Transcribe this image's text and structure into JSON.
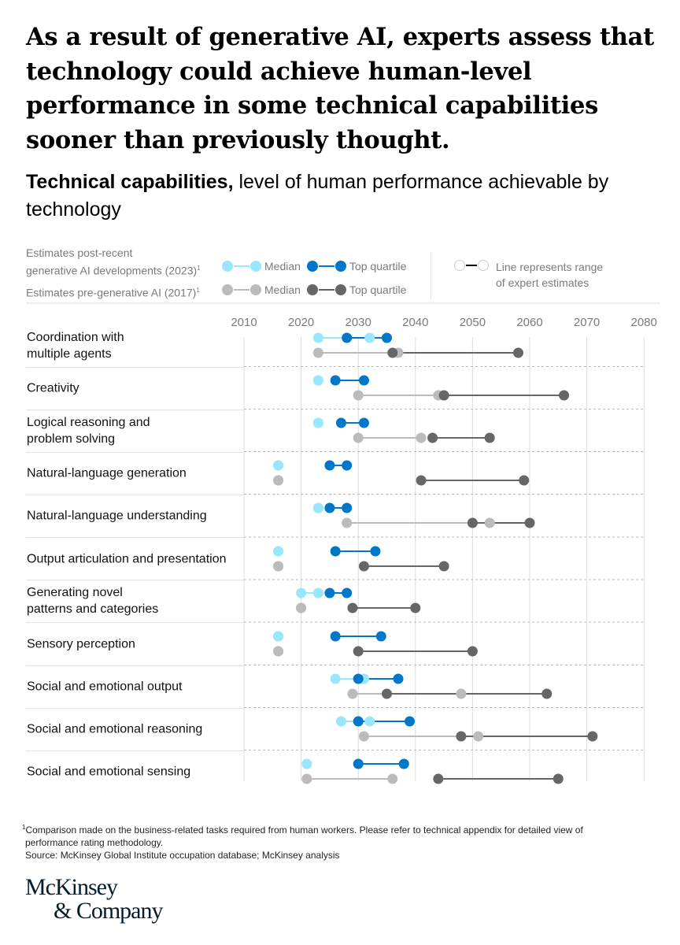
{
  "title": "As a result of generative AI, experts assess that technology could achieve human-level performance in some technical capabilities sooner than previously thought.",
  "subtitle_bold": "Technical capabilities,",
  "subtitle_rest": " level of human performance achievable by technology",
  "legend": {
    "group_2023_line1": "Estimates post-recent",
    "group_2023_line2": "generative AI developments (2023)",
    "group_2017": "Estimates pre-generative AI (2017)",
    "footnote_mark": "1",
    "median": "Median",
    "top_quartile": "Top quartile",
    "range_note_line1": "Line represents range",
    "range_note_line2": "of expert estimates"
  },
  "colors": {
    "median_2023": "#99e6ff",
    "quartile_2023": "#0077c8",
    "median_2017": "#bbbbbb",
    "quartile_2017": "#666666"
  },
  "chart_data": {
    "type": "dumbbell",
    "x_ticks": [
      "2010",
      "2020",
      "2030",
      "2040",
      "2050",
      "2060",
      "2070",
      "2080"
    ],
    "xlim": [
      2010,
      2080
    ],
    "grid": true,
    "legend_position": "top",
    "rows": [
      {
        "label": "Coordination with multiple agents",
        "median_2023": [
          2023,
          2032
        ],
        "quartile_2023": [
          2028,
          2035
        ],
        "median_2017": [
          2023,
          2037
        ],
        "quartile_2017": [
          2036,
          2058
        ]
      },
      {
        "label": "Creativity",
        "median_2023": [
          2023,
          2023
        ],
        "quartile_2023": [
          2026,
          2031
        ],
        "median_2017": [
          2030,
          2044
        ],
        "quartile_2017": [
          2045,
          2066
        ]
      },
      {
        "label": "Logical reasoning and problem solving",
        "median_2023": [
          2023,
          2023
        ],
        "quartile_2023": [
          2027,
          2031
        ],
        "median_2017": [
          2030,
          2041
        ],
        "quartile_2017": [
          2043,
          2053
        ]
      },
      {
        "label": "Natural-language generation",
        "median_2023": [
          2016,
          2016
        ],
        "quartile_2023": [
          2025,
          2028
        ],
        "median_2017": [
          2016,
          2016
        ],
        "quartile_2017": [
          2041,
          2059
        ]
      },
      {
        "label": "Natural-language understanding",
        "median_2023": [
          2023,
          2023
        ],
        "quartile_2023": [
          2025,
          2028
        ],
        "median_2017": [
          2028,
          2053
        ],
        "quartile_2017": [
          2050,
          2060
        ]
      },
      {
        "label": "Output articulation and presentation",
        "median_2023": [
          2016,
          2016
        ],
        "quartile_2023": [
          2026,
          2033
        ],
        "median_2017": [
          2016,
          2016
        ],
        "quartile_2017": [
          2031,
          2045
        ]
      },
      {
        "label": "Generating novel patterns and categories",
        "median_2023": [
          2020,
          2023
        ],
        "quartile_2023": [
          2025,
          2028
        ],
        "median_2017": [
          2020,
          2020
        ],
        "quartile_2017": [
          2029,
          2040
        ]
      },
      {
        "label": "Sensory perception",
        "median_2023": [
          2016,
          2016
        ],
        "quartile_2023": [
          2026,
          2034
        ],
        "median_2017": [
          2016,
          2016
        ],
        "quartile_2017": [
          2030,
          2050
        ]
      },
      {
        "label": "Social and emotional output",
        "median_2023": [
          2026,
          2031
        ],
        "quartile_2023": [
          2030,
          2037
        ],
        "median_2017": [
          2029,
          2048
        ],
        "quartile_2017": [
          2035,
          2063
        ]
      },
      {
        "label": "Social and emotional reasoning",
        "median_2023": [
          2027,
          2032
        ],
        "quartile_2023": [
          2030,
          2039
        ],
        "median_2017": [
          2031,
          2051
        ],
        "quartile_2017": [
          2048,
          2071
        ]
      },
      {
        "label": "Social and emotional sensing",
        "median_2023": [
          2021,
          2021
        ],
        "quartile_2023": [
          2030,
          2038
        ],
        "median_2017": [
          2021,
          2036
        ],
        "quartile_2017": [
          2044,
          2065
        ]
      }
    ]
  },
  "footnote_line1": "Comparison made on the business-related tasks required from human workers. Please refer to technical appendix for detailed view of",
  "footnote_line2": "performance rating methodology.",
  "source": "Source: McKinsey Global Institute occupation database; McKinsey analysis",
  "logo_line1": "McKinsey",
  "logo_line2": "& Company"
}
